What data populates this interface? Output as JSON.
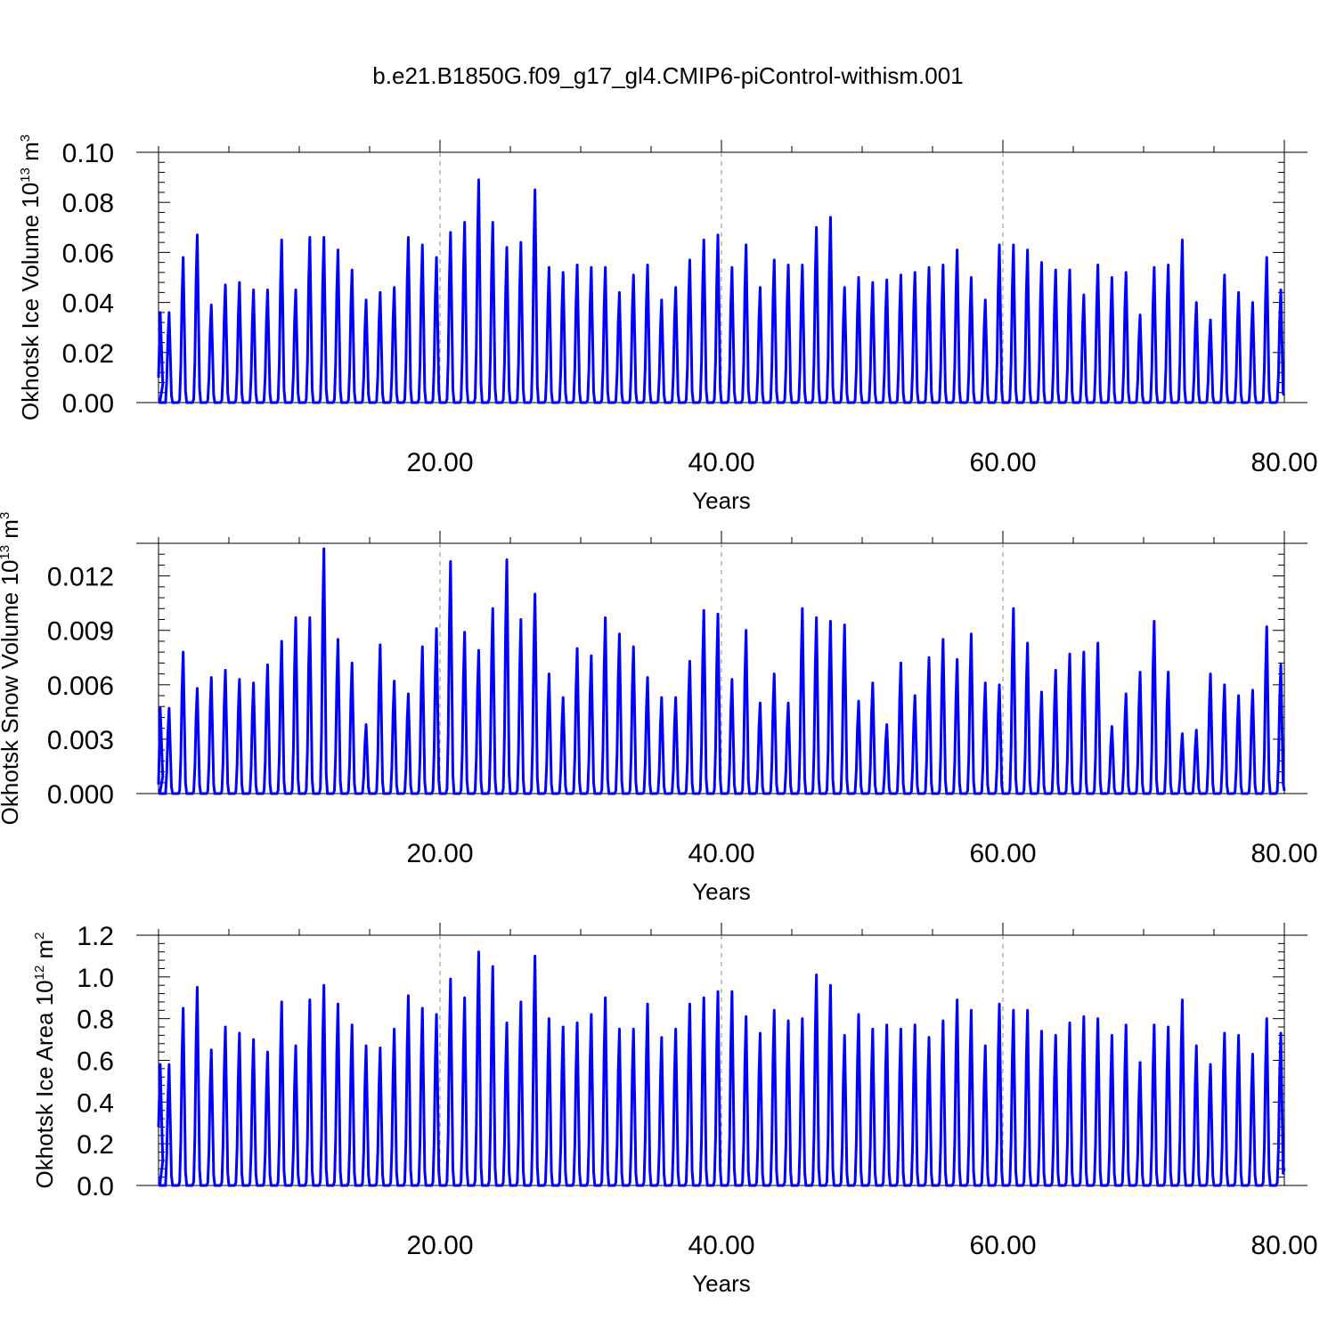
{
  "figure": {
    "title": "b.e21.B1850G.f09_g17_gl4.CMIP6-piControl-withism.001"
  },
  "colors": {
    "series": "#0000ff",
    "grid": "#8c8c8c",
    "frame": "#000000"
  },
  "chart_data": [
    {
      "type": "line",
      "id": "ice-volume",
      "title": "",
      "xlabel": "Years",
      "ylabel": {
        "text": "Okhotsk Ice Volume 10",
        "sup1": "13",
        "mid": " m",
        "sup2": "3"
      },
      "xlim": [
        0,
        80
      ],
      "ylim": [
        0,
        0.1
      ],
      "x_ticks": [
        20,
        40,
        60,
        80
      ],
      "x_tick_labels": [
        "20.00",
        "40.00",
        "60.00",
        "80.00"
      ],
      "y_ticks": [
        0.0,
        0.02,
        0.04,
        0.06,
        0.08,
        0.1
      ],
      "y_tick_labels": [
        "0.00",
        "0.02",
        "0.04",
        "0.06",
        "0.08",
        "0.10"
      ],
      "grid": "vertical dashed at labeled x ticks",
      "series": [
        {
          "description": "monthly seasonal cycle, annual winter maxima",
          "annual_peaks": [
            0.036,
            0.058,
            0.067,
            0.039,
            0.047,
            0.048,
            0.045,
            0.045,
            0.065,
            0.045,
            0.066,
            0.066,
            0.061,
            0.053,
            0.041,
            0.044,
            0.046,
            0.066,
            0.063,
            0.058,
            0.068,
            0.072,
            0.089,
            0.072,
            0.062,
            0.064,
            0.085,
            0.054,
            0.052,
            0.055,
            0.054,
            0.054,
            0.044,
            0.051,
            0.055,
            0.041,
            0.046,
            0.057,
            0.065,
            0.067,
            0.054,
            0.063,
            0.046,
            0.057,
            0.055,
            0.055,
            0.07,
            0.074,
            0.046,
            0.05,
            0.048,
            0.049,
            0.051,
            0.052,
            0.054,
            0.055,
            0.061,
            0.05,
            0.041,
            0.063,
            0.063,
            0.061,
            0.056,
            0.053,
            0.053,
            0.043,
            0.055,
            0.05,
            0.052,
            0.035,
            0.054,
            0.055,
            0.065,
            0.04,
            0.033,
            0.051,
            0.044,
            0.04,
            0.058,
            0.045
          ],
          "start_value": 0.01
        }
      ]
    },
    {
      "type": "line",
      "id": "snow-volume",
      "title": "",
      "xlabel": "Years",
      "ylabel": {
        "text": "Okhotsk Snow Volume 10",
        "sup1": "13",
        "mid": " m",
        "sup2": "3"
      },
      "xlim": [
        0,
        80
      ],
      "ylim": [
        0,
        0.0138
      ],
      "x_ticks": [
        20,
        40,
        60,
        80
      ],
      "x_tick_labels": [
        "20.00",
        "40.00",
        "60.00",
        "80.00"
      ],
      "y_ticks": [
        0.0,
        0.003,
        0.006,
        0.009,
        0.012
      ],
      "y_tick_labels": [
        "0.000",
        "0.003",
        "0.006",
        "0.009",
        "0.012"
      ],
      "grid": "vertical dashed at labeled x ticks",
      "series": [
        {
          "description": "monthly seasonal cycle, annual winter maxima",
          "annual_peaks": [
            0.0047,
            0.0078,
            0.0058,
            0.0064,
            0.0068,
            0.0063,
            0.0061,
            0.0071,
            0.0084,
            0.0097,
            0.0097,
            0.0135,
            0.0085,
            0.0072,
            0.0038,
            0.0082,
            0.0062,
            0.0055,
            0.0081,
            0.0091,
            0.0128,
            0.0089,
            0.0079,
            0.0102,
            0.0129,
            0.0096,
            0.011,
            0.0066,
            0.0053,
            0.008,
            0.0076,
            0.0097,
            0.0088,
            0.0081,
            0.0064,
            0.0053,
            0.0053,
            0.0073,
            0.0101,
            0.0099,
            0.0063,
            0.009,
            0.005,
            0.0066,
            0.005,
            0.0102,
            0.0097,
            0.0095,
            0.0093,
            0.0051,
            0.0061,
            0.0038,
            0.0072,
            0.0054,
            0.0075,
            0.0085,
            0.0074,
            0.0088,
            0.0061,
            0.006,
            0.0102,
            0.0083,
            0.0056,
            0.0068,
            0.0077,
            0.0078,
            0.0083,
            0.0037,
            0.0055,
            0.0067,
            0.0095,
            0.0067,
            0.0033,
            0.0035,
            0.0066,
            0.006,
            0.0054,
            0.0057,
            0.0092,
            0.0071
          ],
          "start_value": 0.0005
        }
      ]
    },
    {
      "type": "line",
      "id": "ice-area",
      "title": "",
      "xlabel": "Years",
      "ylabel": {
        "text": "Okhotsk Ice Area 10",
        "sup1": "12",
        "mid": " m",
        "sup2": "2"
      },
      "xlim": [
        0,
        80
      ],
      "ylim": [
        0,
        1.2
      ],
      "x_ticks": [
        20,
        40,
        60,
        80
      ],
      "x_tick_labels": [
        "20.00",
        "40.00",
        "60.00",
        "80.00"
      ],
      "y_ticks": [
        0.0,
        0.2,
        0.4,
        0.6,
        0.8,
        1.0,
        1.2
      ],
      "y_tick_labels": [
        "0.0",
        "0.2",
        "0.4",
        "0.6",
        "0.8",
        "1.0",
        "1.2"
      ],
      "grid": "vertical dashed at labeled x ticks",
      "series": [
        {
          "description": "monthly seasonal cycle, annual winter maxima",
          "annual_peaks": [
            0.58,
            0.85,
            0.95,
            0.65,
            0.76,
            0.73,
            0.7,
            0.64,
            0.88,
            0.67,
            0.89,
            0.96,
            0.87,
            0.77,
            0.67,
            0.66,
            0.75,
            0.91,
            0.85,
            0.82,
            0.99,
            0.9,
            1.12,
            1.05,
            0.78,
            0.88,
            1.1,
            0.8,
            0.76,
            0.78,
            0.82,
            0.9,
            0.75,
            0.75,
            0.87,
            0.71,
            0.75,
            0.87,
            0.9,
            0.93,
            0.93,
            0.81,
            0.73,
            0.84,
            0.79,
            0.8,
            1.01,
            0.96,
            0.72,
            0.82,
            0.75,
            0.77,
            0.75,
            0.77,
            0.71,
            0.79,
            0.89,
            0.84,
            0.67,
            0.87,
            0.84,
            0.84,
            0.74,
            0.72,
            0.78,
            0.81,
            0.8,
            0.72,
            0.77,
            0.59,
            0.77,
            0.76,
            0.89,
            0.67,
            0.58,
            0.73,
            0.72,
            0.63,
            0.8,
            0.73
          ],
          "start_value": 0.28
        }
      ]
    }
  ]
}
